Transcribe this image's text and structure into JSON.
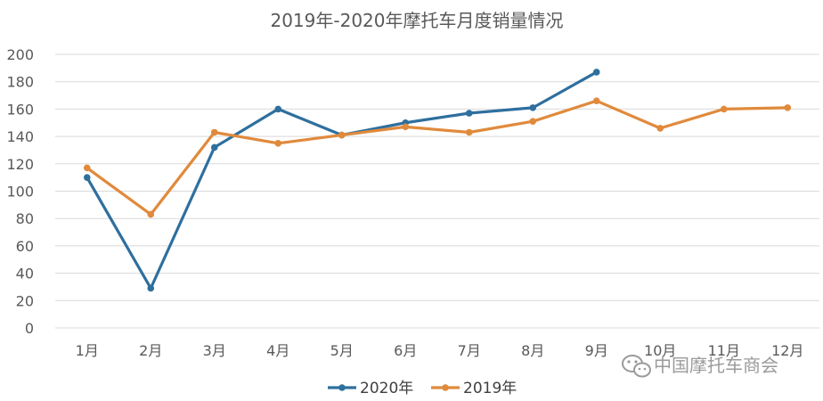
{
  "chart_data": {
    "type": "line",
    "title": "2019年-2020年摩托车月度销量情况",
    "categories": [
      "1月",
      "2月",
      "3月",
      "4月",
      "5月",
      "6月",
      "7月",
      "8月",
      "9月",
      "10月",
      "11月",
      "12月"
    ],
    "series": [
      {
        "name": "2020年",
        "color": "#2e6f9e",
        "values": [
          110,
          29,
          132,
          160,
          141,
          150,
          157,
          161,
          187,
          null,
          null,
          null
        ]
      },
      {
        "name": "2019年",
        "color": "#e08a3c",
        "values": [
          117,
          83,
          143,
          135,
          141,
          147,
          143,
          151,
          166,
          146,
          160,
          161
        ]
      }
    ],
    "ylim": [
      0,
      200
    ],
    "yticks": [
      0,
      20,
      40,
      60,
      80,
      100,
      120,
      140,
      160,
      180,
      200
    ],
    "xlabel": "",
    "ylabel": "",
    "grid": true,
    "legend_position": "bottom-center"
  },
  "watermark": {
    "text": "中国摩托车商会",
    "icon": "wechat-icon"
  }
}
